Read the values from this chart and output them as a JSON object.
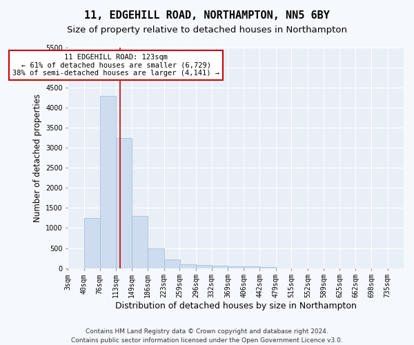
{
  "title": "11, EDGEHILL ROAD, NORTHAMPTON, NN5 6BY",
  "subtitle": "Size of property relative to detached houses in Northampton",
  "xlabel": "Distribution of detached houses by size in Northampton",
  "ylabel": "Number of detached properties",
  "footer_line1": "Contains HM Land Registry data © Crown copyright and database right 2024.",
  "footer_line2": "Contains public sector information licensed under the Open Government Licence v3.0.",
  "annotation_line1": "11 EDGEHILL ROAD: 123sqm",
  "annotation_line2": "← 61% of detached houses are smaller (6,729)",
  "annotation_line3": "38% of semi-detached houses are larger (4,141) →",
  "bar_color": "#cddcee",
  "bar_edge_color": "#9bbcd8",
  "red_line_x": 123,
  "annotation_box_facecolor": "#ffffff",
  "annotation_box_edgecolor": "#cc0000",
  "categories": [
    "3sqm",
    "40sqm",
    "76sqm",
    "113sqm",
    "149sqm",
    "186sqm",
    "223sqm",
    "259sqm",
    "296sqm",
    "332sqm",
    "369sqm",
    "406sqm",
    "442sqm",
    "479sqm",
    "515sqm",
    "552sqm",
    "589sqm",
    "625sqm",
    "662sqm",
    "698sqm",
    "735sqm"
  ],
  "bin_left": [
    3,
    40,
    76,
    113,
    149,
    186,
    223,
    259,
    296,
    332,
    369,
    406,
    442,
    479,
    515,
    552,
    589,
    625,
    662,
    698,
    735
  ],
  "bin_width": 37,
  "values": [
    0,
    1250,
    4300,
    3250,
    1300,
    500,
    210,
    100,
    70,
    55,
    45,
    45,
    35,
    0,
    0,
    0,
    0,
    0,
    0,
    0,
    0
  ],
  "ylim": [
    0,
    5500
  ],
  "yticks": [
    0,
    500,
    1000,
    1500,
    2000,
    2500,
    3000,
    3500,
    4000,
    4500,
    5000,
    5500
  ],
  "plot_bg_color": "#e8eff7",
  "fig_bg_color": "#f5f8fc",
  "grid_color": "#ffffff",
  "title_fontsize": 11,
  "subtitle_fontsize": 9.5,
  "ylabel_fontsize": 8.5,
  "xlabel_fontsize": 9,
  "tick_fontsize": 7,
  "annotation_fontsize": 7.5,
  "footer_fontsize": 6.5
}
